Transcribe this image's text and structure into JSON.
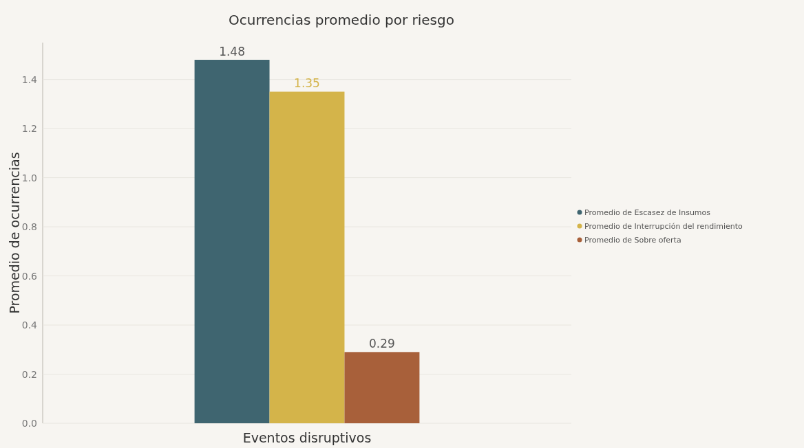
{
  "chart_data": {
    "type": "bar",
    "title": "Ocurrencias promedio por riesgo",
    "ylabel": "Promedio de ocurrencias",
    "categories": [
      "Eventos disruptivos"
    ],
    "series": [
      {
        "name": "Promedio de Escasez de Insumos",
        "color": "#3f6570",
        "values": [
          1.48
        ]
      },
      {
        "name": "Promedio de Interrupción del rendimiento",
        "color": "#d4b44a",
        "values": [
          1.35
        ]
      },
      {
        "name": "Promedio de Sobre oferta",
        "color": "#a8603a",
        "values": [
          0.29
        ]
      }
    ],
    "ylim": [
      0,
      1.55
    ],
    "yticks": [
      {
        "value": 0,
        "label": "0.0"
      },
      {
        "value": 0.2,
        "label": "0.2"
      },
      {
        "value": 0.4,
        "label": "0.4"
      },
      {
        "value": 0.6,
        "label": "0.6"
      },
      {
        "value": 0.8,
        "label": "0.8"
      },
      {
        "value": 1,
        "label": "1.0"
      },
      {
        "value": 1.2,
        "label": "1.2"
      },
      {
        "value": 1.4,
        "label": "1.4"
      }
    ],
    "grid": "y",
    "legend": "right",
    "data_labels": true
  }
}
